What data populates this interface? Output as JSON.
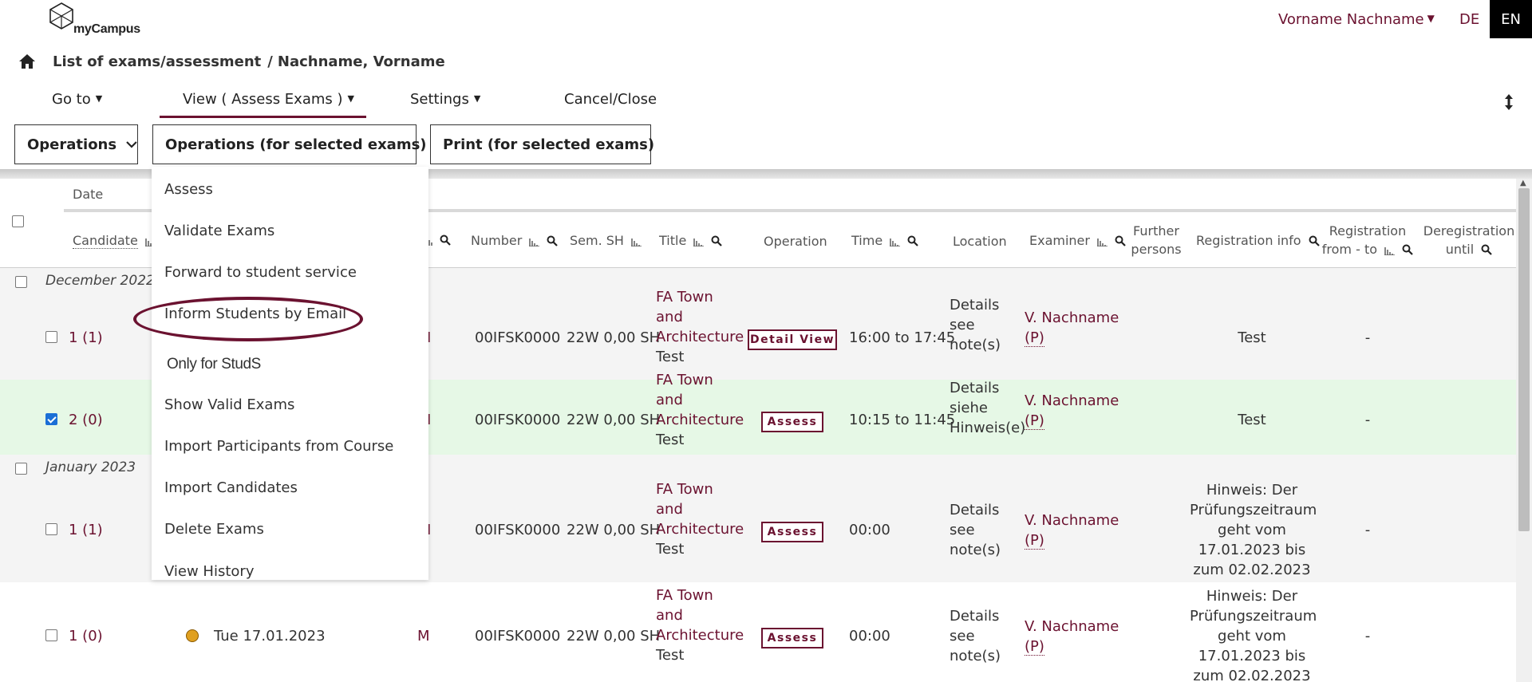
{
  "header": {
    "logo_text": "myCampus",
    "user_name": "Vorname Nachname",
    "lang_de": "DE",
    "lang_en": "EN"
  },
  "breadcrumb": {
    "section": "List of exams/assessment",
    "separator": "/",
    "person": "Nachname, Vorname"
  },
  "menu": {
    "goto": "Go to",
    "view": "View ( Assess Exams )",
    "settings": "Settings",
    "cancel": "Cancel/Close"
  },
  "toolbar": {
    "operations": "Operations",
    "operations_selected": "Operations (for selected exams)",
    "print_selected": "Print (for selected exams)"
  },
  "table": {
    "headers": {
      "date": "Date",
      "candidate": "Candidate",
      "number": "Number",
      "sem_sh": "Sem. SH",
      "title": "Title",
      "operation": "Operation",
      "time": "Time",
      "location": "Location",
      "examiner": "Examiner",
      "further_line1": "Further",
      "further_line2": "persons",
      "reg_info": "Registration info",
      "reg_line1": "Registration",
      "reg_line2": "from - to",
      "dereg_line1": "Deregistration",
      "dereg_line2": "until"
    },
    "groups": {
      "dec": "December 2022",
      "jan": "January 2023"
    },
    "rows": [
      {
        "candidate": "1 (1)",
        "partial": "I",
        "number": "00IFSK0000",
        "sem": "22W 0,00 SH",
        "title_l1": "FA Town",
        "title_l2": "and",
        "title_l3": "Architecture",
        "title_l4": "Test",
        "operation": "Detail View",
        "time": "16:00 to 17:45",
        "loc_l1": "Details",
        "loc_l2": "see",
        "loc_l3": "note(s)",
        "examiner": "V. Nachname",
        "examiner_p": "(P)",
        "reg_info": "Test",
        "reg_from_to": "-"
      },
      {
        "candidate": "2 (0)",
        "partial": "I",
        "number": "00IFSK0000",
        "sem": "22W 0,00 SH",
        "title_l1": "FA Town",
        "title_l2": "and",
        "title_l3": "Architecture",
        "title_l4": "Test",
        "operation": "Assess",
        "time": "10:15 to 11:45",
        "loc_l1": "Details",
        "loc_l2": "siehe",
        "loc_l3": "Hinweis(e)",
        "examiner": "V. Nachname",
        "examiner_p": "(P)",
        "reg_info": "Test",
        "reg_from_to": "-"
      },
      {
        "candidate": "1 (1)",
        "partial": "I",
        "number": "00IFSK0000",
        "sem": "22W 0,00 SH",
        "title_l1": "FA Town",
        "title_l2": "and",
        "title_l3": "Architecture",
        "title_l4": "Test",
        "operation": "Assess",
        "time": "00:00",
        "loc_l1": "Details",
        "loc_l2": "see",
        "loc_l3": "note(s)",
        "examiner": "V. Nachname",
        "examiner_p": "(P)",
        "reg_l1": "Hinweis: Der",
        "reg_l2": "Prüfungszeitraum",
        "reg_l3": "geht vom",
        "reg_l4": "17.01.2023 bis",
        "reg_l5": "zum 02.02.2023",
        "reg_from_to": "-"
      },
      {
        "candidate": "1 (0)",
        "date": "Tue 17.01.2023",
        "partial": "M",
        "number": "00IFSK0000",
        "sem": "22W 0,00 SH",
        "title_l1": "FA Town",
        "title_l2": "and",
        "title_l3": "Architecture",
        "title_l4": "Test",
        "operation": "Assess",
        "time": "00:00",
        "loc_l1": "Details",
        "loc_l2": "see",
        "loc_l3": "note(s)",
        "examiner": "V. Nachname",
        "examiner_p": "(P)",
        "reg_l1": "Hinweis: Der",
        "reg_l2": "Prüfungszeitraum",
        "reg_l3": "geht vom",
        "reg_l4": "17.01.2023 bis",
        "reg_l5": "zum 02.02.2023",
        "reg_from_to": "-"
      }
    ]
  },
  "dropdown": {
    "items": [
      "Assess",
      "Validate Exams",
      "Forward to student service",
      "Inform Students by Email"
    ],
    "section": "Only for StudS",
    "items2": [
      "Show Valid Exams",
      "Import Participants from Course",
      "Import Candidates",
      "Delete Exams",
      "View History"
    ]
  },
  "colors": {
    "accent": "#6b1230",
    "selected_row": "#e6f8e6",
    "group_row": "#f4f4f4",
    "status_dot": "#e0a020"
  }
}
